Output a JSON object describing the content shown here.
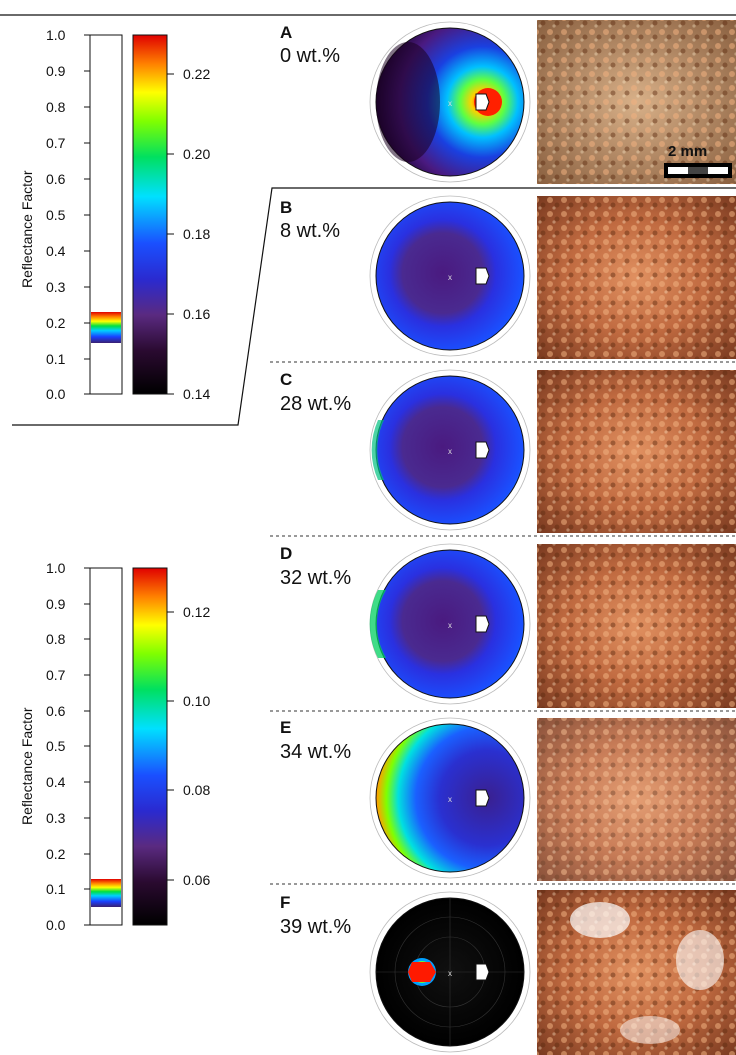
{
  "figure": {
    "scale_bar_label": "2 mm",
    "top_scale": {
      "axis_title": "Reflectance Factor",
      "left_ticks": [
        "1.0",
        "0.9",
        "0.8",
        "0.7",
        "0.6",
        "0.5",
        "0.4",
        "0.3",
        "0.2",
        "0.1",
        "0.0"
      ],
      "colorbar_ticks": [
        "0.22",
        "0.20",
        "0.18",
        "0.16",
        "0.14"
      ],
      "colorbar_range": [
        0.14,
        0.23
      ]
    },
    "bottom_scale": {
      "axis_title": "Reflectance Factor",
      "left_ticks": [
        "1.0",
        "0.9",
        "0.8",
        "0.7",
        "0.6",
        "0.5",
        "0.4",
        "0.3",
        "0.2",
        "0.1",
        "0.0"
      ],
      "colorbar_ticks": [
        "0.12",
        "0.10",
        "0.08",
        "0.06"
      ],
      "colorbar_range": [
        0.05,
        0.13
      ]
    },
    "panels": [
      {
        "letter": "A",
        "label": "0 wt.%"
      },
      {
        "letter": "B",
        "label": "8 wt.%"
      },
      {
        "letter": "C",
        "label": "28 wt.%"
      },
      {
        "letter": "D",
        "label": "32 wt.%"
      },
      {
        "letter": "E",
        "label": "34 wt.%"
      },
      {
        "letter": "F",
        "label": "39 wt.%"
      }
    ]
  }
}
